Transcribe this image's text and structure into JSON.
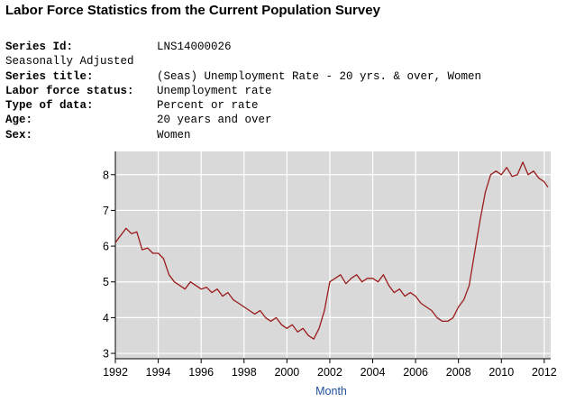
{
  "header": {
    "title": "Labor Force Statistics from the Current Population Survey"
  },
  "meta": [
    {
      "label": "Series Id:",
      "value": "LNS14000026",
      "bold": true
    },
    {
      "label": "Seasonally Adjusted",
      "value": "",
      "bold": false
    },
    {
      "label": "Series title:",
      "value": "(Seas) Unemployment Rate - 20 yrs. & over, Women",
      "bold": true
    },
    {
      "label": "Labor force status:",
      "value": "Unemployment rate",
      "bold": true
    },
    {
      "label": "Type of data:",
      "value": "Percent or rate",
      "bold": true
    },
    {
      "label": "Age:",
      "value": "20 years and over",
      "bold": true
    },
    {
      "label": "Sex:",
      "value": "Women",
      "bold": true
    }
  ],
  "chart_data": {
    "type": "line",
    "title": "",
    "xlabel": "Month",
    "ylabel": "",
    "xlim": [
      1992,
      2012.3
    ],
    "ylim": [
      2.85,
      8.65
    ],
    "x_ticks": [
      1992,
      1994,
      1996,
      1998,
      2000,
      2002,
      2004,
      2006,
      2008,
      2010,
      2012
    ],
    "y_ticks": [
      3,
      4,
      5,
      6,
      7,
      8
    ],
    "grid": true,
    "background": "#d9d9d9",
    "line_color": "#9b1c1c",
    "series": [
      {
        "name": "",
        "x": [
          1992.0,
          1992.25,
          1992.5,
          1992.75,
          1993.0,
          1993.25,
          1993.5,
          1993.75,
          1994.0,
          1994.25,
          1994.5,
          1994.75,
          1995.0,
          1995.25,
          1995.5,
          1995.75,
          1996.0,
          1996.25,
          1996.5,
          1996.75,
          1997.0,
          1997.25,
          1997.5,
          1997.75,
          1998.0,
          1998.25,
          1998.5,
          1998.75,
          1999.0,
          1999.25,
          1999.5,
          1999.75,
          2000.0,
          2000.25,
          2000.5,
          2000.75,
          2001.0,
          2001.25,
          2001.5,
          2001.75,
          2002.0,
          2002.25,
          2002.5,
          2002.75,
          2003.0,
          2003.25,
          2003.5,
          2003.75,
          2004.0,
          2004.25,
          2004.5,
          2004.75,
          2005.0,
          2005.25,
          2005.5,
          2005.75,
          2006.0,
          2006.25,
          2006.5,
          2006.75,
          2007.0,
          2007.25,
          2007.5,
          2007.75,
          2008.0,
          2008.25,
          2008.5,
          2008.75,
          2009.0,
          2009.25,
          2009.5,
          2009.75,
          2010.0,
          2010.25,
          2010.5,
          2010.75,
          2011.0,
          2011.25,
          2011.5,
          2011.75,
          2012.0,
          2012.17
        ],
        "values": [
          6.1,
          6.3,
          6.5,
          6.35,
          6.4,
          5.9,
          5.95,
          5.8,
          5.8,
          5.65,
          5.2,
          5.0,
          4.9,
          4.8,
          5.0,
          4.9,
          4.8,
          4.85,
          4.7,
          4.8,
          4.6,
          4.7,
          4.5,
          4.4,
          4.3,
          4.2,
          4.1,
          4.2,
          4.0,
          3.9,
          4.0,
          3.8,
          3.7,
          3.8,
          3.6,
          3.7,
          3.5,
          3.4,
          3.7,
          4.2,
          5.0,
          5.1,
          5.2,
          4.95,
          5.1,
          5.2,
          5.0,
          5.1,
          5.1,
          5.0,
          5.2,
          4.9,
          4.7,
          4.8,
          4.6,
          4.7,
          4.6,
          4.4,
          4.3,
          4.2,
          4.0,
          3.9,
          3.9,
          4.0,
          4.3,
          4.5,
          4.9,
          5.8,
          6.7,
          7.5,
          8.0,
          8.1,
          8.0,
          8.2,
          7.95,
          8.0,
          8.35,
          8.0,
          8.1,
          7.9,
          7.8,
          7.65
        ]
      }
    ]
  }
}
